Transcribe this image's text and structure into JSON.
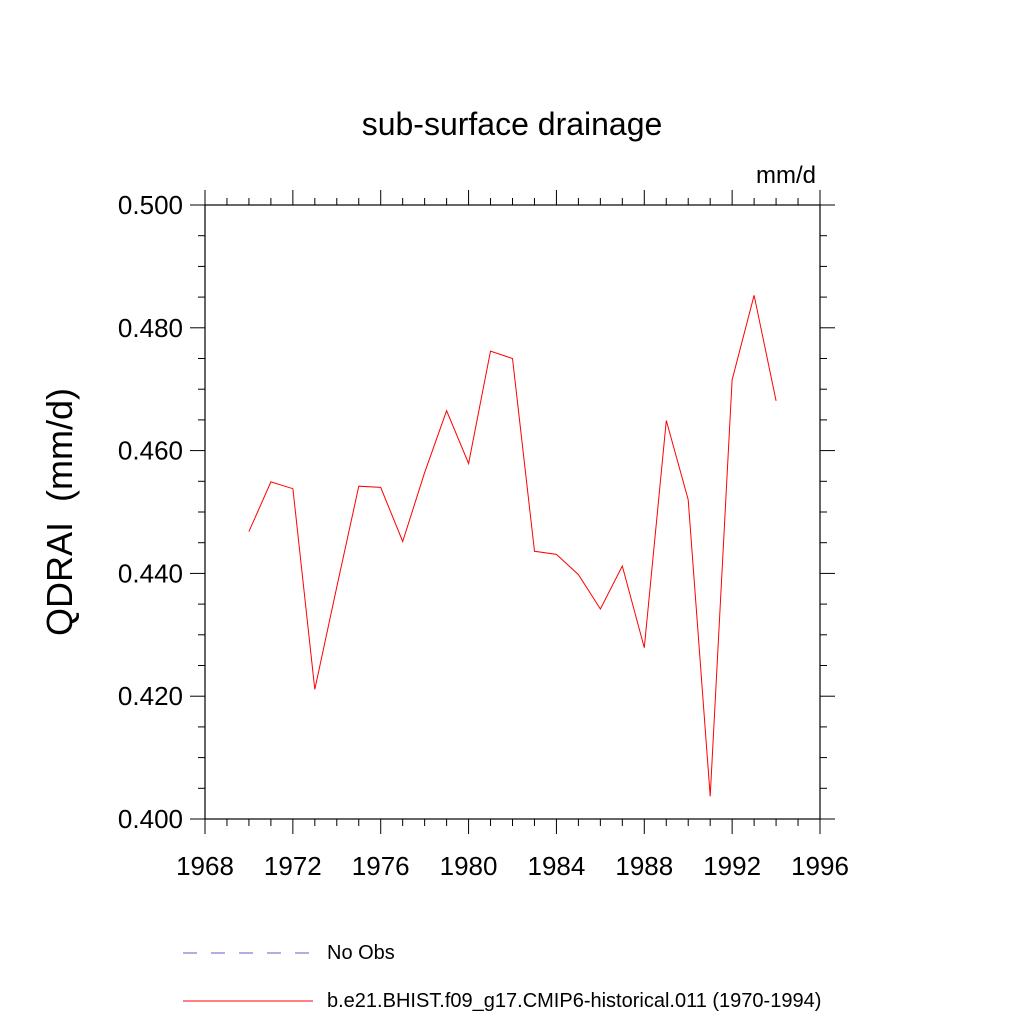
{
  "chart_data": {
    "type": "line",
    "title": "sub-surface drainage",
    "units_label": "mm/d",
    "ylabel": "QDRAI  (mm/d)",
    "xlim": [
      1968,
      1996
    ],
    "ylim": [
      0.4,
      0.5
    ],
    "x_ticks": [
      1968,
      1972,
      1976,
      1980,
      1984,
      1988,
      1992,
      1996
    ],
    "y_ticks": [
      "0.400",
      "0.420",
      "0.440",
      "0.460",
      "0.480",
      "0.500"
    ],
    "grid": false,
    "legend_position": "bottom",
    "series": [
      {
        "name": "No Obs",
        "color": "#6a5acd",
        "style": "dashed",
        "x": [],
        "values": []
      },
      {
        "name": "b.e21.BHIST.f09_g17.CMIP6-historical.011 (1970-1994)",
        "color": "#ff0000",
        "style": "solid",
        "x": [
          1970,
          1971,
          1972,
          1973,
          1974,
          1975,
          1976,
          1977,
          1978,
          1979,
          1980,
          1981,
          1982,
          1983,
          1984,
          1985,
          1986,
          1987,
          1988,
          1989,
          1990,
          1991,
          1992,
          1993,
          1994
        ],
        "values": [
          0.4468,
          0.4549,
          0.4538,
          0.4211,
          0.4378,
          0.4542,
          0.454,
          0.4452,
          0.4564,
          0.4665,
          0.4579,
          0.4762,
          0.475,
          0.4436,
          0.4431,
          0.4398,
          0.4342,
          0.4412,
          0.4279,
          0.4649,
          0.452,
          0.4037,
          0.4715,
          0.4853,
          0.4681
        ]
      }
    ]
  }
}
